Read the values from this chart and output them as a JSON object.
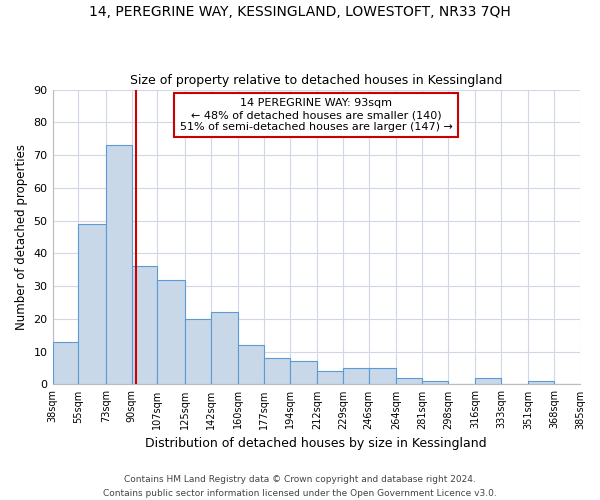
{
  "title": "14, PEREGRINE WAY, KESSINGLAND, LOWESTOFT, NR33 7QH",
  "subtitle": "Size of property relative to detached houses in Kessingland",
  "xlabel": "Distribution of detached houses by size in Kessingland",
  "ylabel": "Number of detached properties",
  "bar_edges": [
    38,
    55,
    73,
    90,
    107,
    125,
    142,
    160,
    177,
    194,
    212,
    229,
    246,
    264,
    281,
    298,
    316,
    333,
    351,
    368,
    385
  ],
  "bar_heights": [
    13,
    49,
    73,
    36,
    32,
    20,
    22,
    12,
    8,
    7,
    4,
    5,
    5,
    2,
    1,
    0,
    2,
    0,
    1,
    0
  ],
  "bar_color": "#c8d8e8",
  "bar_edge_color": "#5b9bd5",
  "vline_x": 93,
  "vline_color": "#cc0000",
  "annotation_text": "14 PEREGRINE WAY: 93sqm\n← 48% of detached houses are smaller (140)\n51% of semi-detached houses are larger (147) →",
  "annotation_box_color": "white",
  "annotation_box_edge_color": "#cc0000",
  "ylim": [
    0,
    90
  ],
  "tick_labels": [
    "38sqm",
    "55sqm",
    "73sqm",
    "90sqm",
    "107sqm",
    "125sqm",
    "142sqm",
    "160sqm",
    "177sqm",
    "194sqm",
    "212sqm",
    "229sqm",
    "246sqm",
    "264sqm",
    "281sqm",
    "298sqm",
    "316sqm",
    "333sqm",
    "351sqm",
    "368sqm",
    "385sqm"
  ],
  "footer1": "Contains HM Land Registry data © Crown copyright and database right 2024.",
  "footer2": "Contains public sector information licensed under the Open Government Licence v3.0.",
  "background_color": "#ffffff",
  "grid_color": "#d0d8e8",
  "yticks": [
    0,
    10,
    20,
    30,
    40,
    50,
    60,
    70,
    80,
    90
  ]
}
